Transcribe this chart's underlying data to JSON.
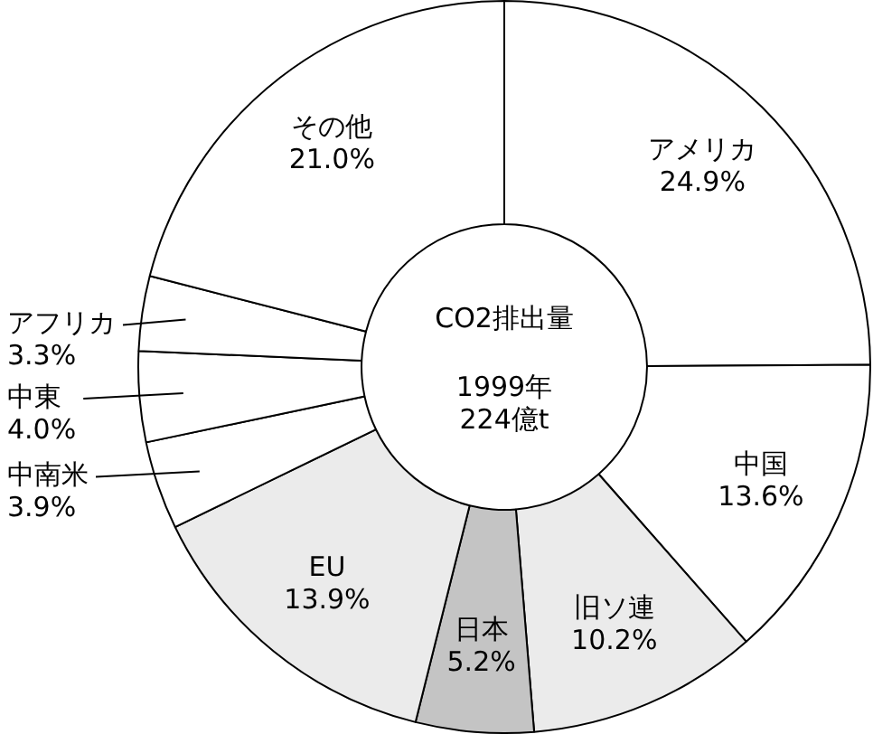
{
  "chart_data": {
    "type": "donut",
    "title": "CO2排出量",
    "subtitle": "1999年",
    "annotations": [
      "224億t"
    ],
    "categories": [
      "アメリカ",
      "中国",
      "旧ソ連",
      "日本",
      "EU",
      "中南米",
      "中東",
      "アフリカ",
      "その他"
    ],
    "values": [
      24.9,
      13.6,
      10.2,
      5.2,
      13.9,
      3.9,
      4.0,
      3.3,
      21.0
    ],
    "colors": [
      "#ffffff",
      "#ffffff",
      "#ebebeb",
      "#c4c4c4",
      "#ebebeb",
      "#ffffff",
      "#ffffff",
      "#ffffff",
      "#ffffff"
    ],
    "value_labels": [
      "24.9%",
      "13.6%",
      "10.2%",
      "5.2%",
      "13.9%",
      "3.9%",
      "4.0%",
      "3.3%",
      "21.0%"
    ]
  }
}
